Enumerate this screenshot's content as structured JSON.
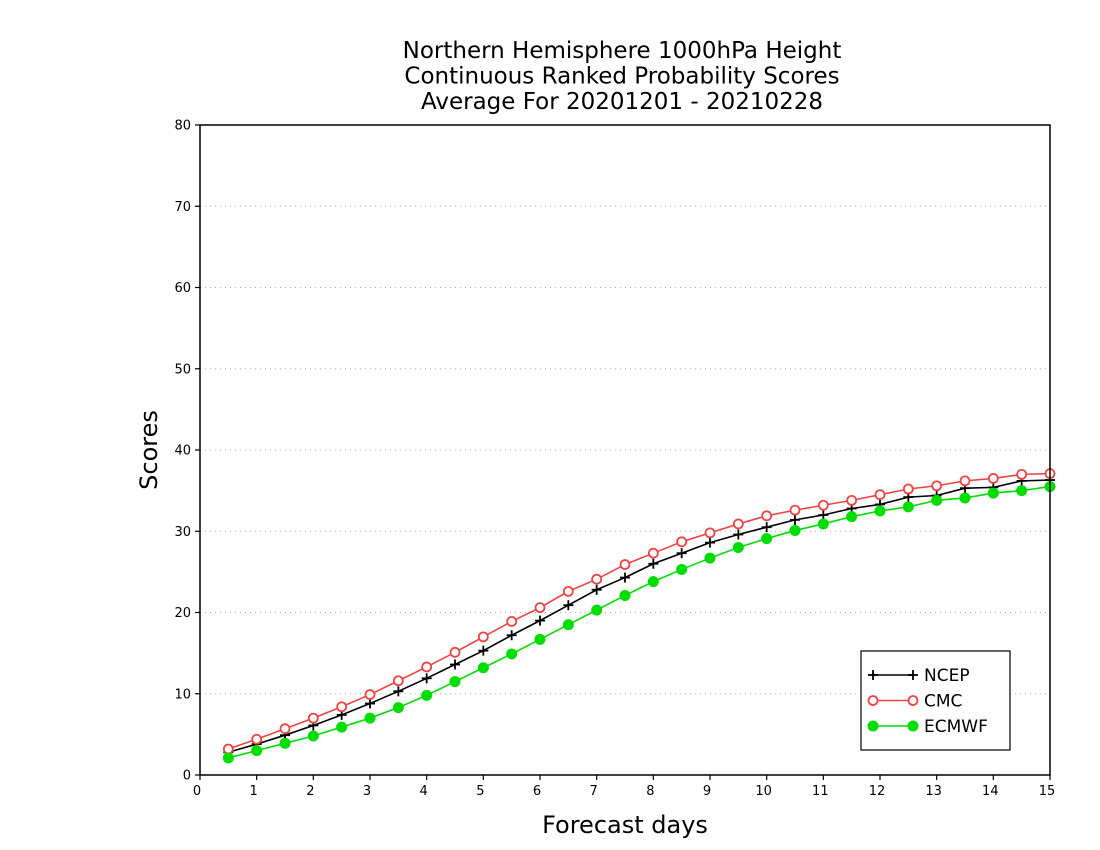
{
  "chart_data": {
    "type": "line",
    "title": [
      "Northern Hemisphere 1000hPa Height",
      "Continuous Ranked Probability Scores",
      "Average For 20201201 - 20210228"
    ],
    "xlabel": "Forecast days",
    "ylabel": "Scores",
    "xlim": [
      0,
      15
    ],
    "ylim": [
      0,
      80
    ],
    "xticks": [
      "0",
      "1",
      "2",
      "3",
      "4",
      "5",
      "6",
      "7",
      "8",
      "9",
      "10",
      "11",
      "12",
      "13",
      "14",
      "15"
    ],
    "yticks": [
      "0",
      "10",
      "20",
      "30",
      "40",
      "50",
      "60",
      "70",
      "80"
    ],
    "grid": "horizontal dotted",
    "legend_position": "bottom-right",
    "x": [
      0.5,
      1,
      1.5,
      2,
      2.5,
      3,
      3.5,
      4,
      4.5,
      5,
      5.5,
      6,
      6.5,
      7,
      7.5,
      8,
      8.5,
      9,
      9.5,
      10,
      10.5,
      11,
      11.5,
      12,
      12.5,
      13,
      13.5,
      14,
      14.5,
      15
    ],
    "series": [
      {
        "name": "NCEP",
        "color": "#000000",
        "marker": "plus",
        "values": [
          2.8,
          3.8,
          4.9,
          6.1,
          7.4,
          8.8,
          10.3,
          11.9,
          13.6,
          15.3,
          17.2,
          19.0,
          20.9,
          22.8,
          24.3,
          26.0,
          27.3,
          28.6,
          29.6,
          30.5,
          31.4,
          32.0,
          32.8,
          33.3,
          34.2,
          34.4,
          35.3,
          35.4,
          36.2,
          36.3
        ]
      },
      {
        "name": "CMC",
        "color": "#ee4444",
        "marker": "open-circle",
        "values": [
          3.2,
          4.4,
          5.7,
          7.0,
          8.4,
          9.9,
          11.6,
          13.3,
          15.1,
          17.0,
          18.9,
          20.6,
          22.6,
          24.1,
          25.9,
          27.3,
          28.7,
          29.8,
          30.9,
          31.9,
          32.6,
          33.2,
          33.8,
          34.5,
          35.2,
          35.6,
          36.2,
          36.5,
          37.0,
          37.1
        ]
      },
      {
        "name": "ECMWF",
        "color": "#00dd00",
        "marker": "filled-circle",
        "values": [
          2.1,
          3.0,
          3.9,
          4.8,
          5.9,
          7.0,
          8.3,
          9.8,
          11.5,
          13.2,
          14.9,
          16.7,
          18.5,
          20.3,
          22.1,
          23.8,
          25.3,
          26.7,
          28.0,
          29.1,
          30.1,
          30.9,
          31.8,
          32.5,
          33.0,
          33.8,
          34.1,
          34.7,
          35.0,
          35.5
        ]
      }
    ]
  }
}
